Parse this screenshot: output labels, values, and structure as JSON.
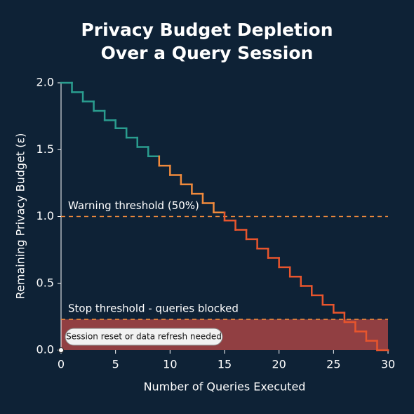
{
  "chart_data": {
    "type": "step",
    "title": "Privacy Budget Depletion",
    "subtitle": "Over a Query Session",
    "x_label": "Number of Queries Executed",
    "y_label": "Remaining Privacy Budget (ε)",
    "xlim": [
      0,
      30
    ],
    "ylim": [
      0,
      2.0
    ],
    "xticks": [
      0,
      5,
      10,
      15,
      20,
      25,
      30
    ],
    "yticks": [
      {
        "value": 0,
        "label": "0.0"
      },
      {
        "value": 0.5,
        "label": "0.5"
      },
      {
        "value": 1.0,
        "label": "1.0"
      },
      {
        "value": 1.5,
        "label": "1.5"
      },
      {
        "value": 2.0,
        "label": "2.0"
      }
    ],
    "series": [
      {
        "color": "#2a9d8f",
        "x": [
          0,
          1,
          2,
          3,
          4,
          5,
          6,
          7,
          8
        ],
        "values": [
          2.0,
          1.93,
          1.86,
          1.79,
          1.72,
          1.66,
          1.59,
          1.52,
          1.45
        ]
      },
      {
        "color": "#f08a3c",
        "x": [
          9,
          10,
          11,
          12,
          13,
          14
        ],
        "values": [
          1.38,
          1.31,
          1.24,
          1.17,
          1.1,
          1.03
        ]
      },
      {
        "color": "#e8552d",
        "x": [
          15,
          16,
          17,
          18,
          19,
          20,
          21,
          22,
          23,
          24,
          25,
          26,
          27,
          28,
          29,
          30
        ],
        "values": [
          0.97,
          0.9,
          0.83,
          0.76,
          0.69,
          0.62,
          0.55,
          0.48,
          0.41,
          0.34,
          0.28,
          0.21,
          0.14,
          0.07,
          0.0,
          0.0
        ]
      }
    ],
    "thresholds": [
      {
        "value": 1.0,
        "label": "Warning threshold (50%)",
        "color": "#f08a3c"
      },
      {
        "value": 0.23,
        "label": "Stop threshold - queries blocked",
        "color": "#f08a3c"
      }
    ],
    "blocked_region": {
      "ylim": [
        0,
        0.23
      ],
      "color": "#a84444"
    },
    "callout": {
      "text": "Session reset or data refresh needed",
      "x": 0,
      "y": 0
    }
  }
}
